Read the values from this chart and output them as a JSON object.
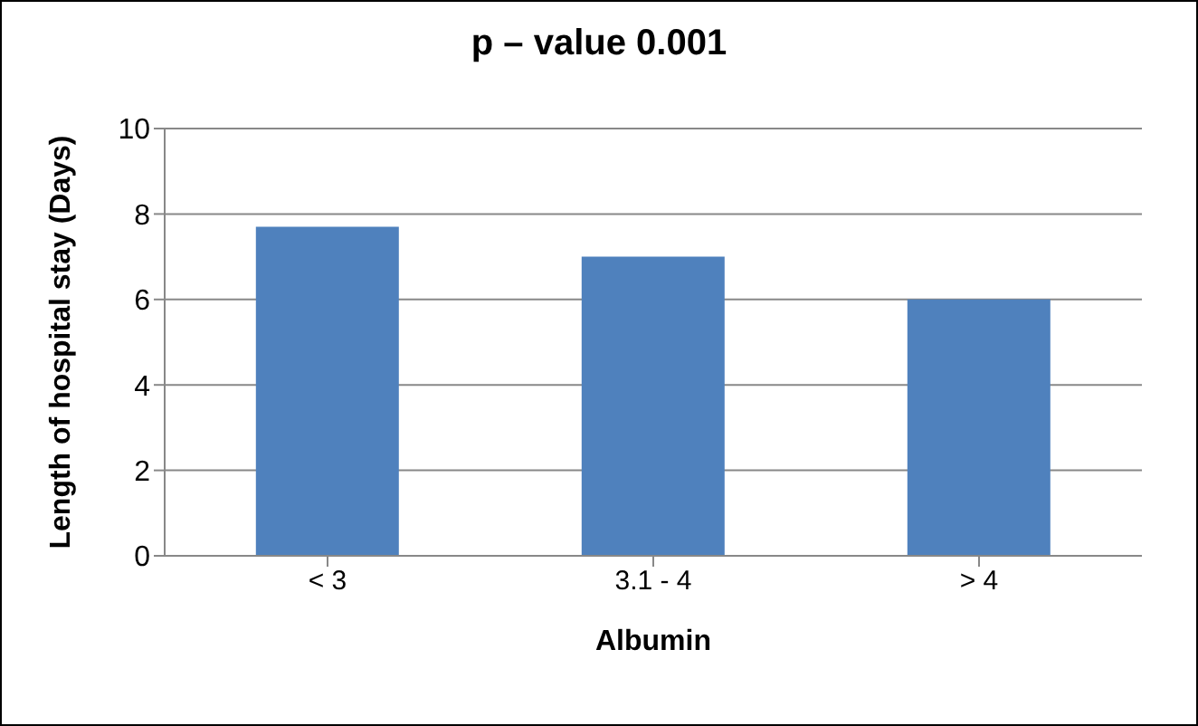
{
  "chart_data": {
    "type": "bar",
    "title": "p – value 0.001",
    "xlabel": "Albumin",
    "ylabel": "Length of hospital stay (Days)",
    "categories": [
      "< 3",
      "3.1 - 4",
      "> 4"
    ],
    "values": [
      7.7,
      7.0,
      6.0
    ],
    "color": "#4f81bd",
    "ylim": [
      0,
      10
    ],
    "yticks": [
      0,
      2,
      4,
      6,
      8,
      10
    ],
    "grid": "y"
  }
}
